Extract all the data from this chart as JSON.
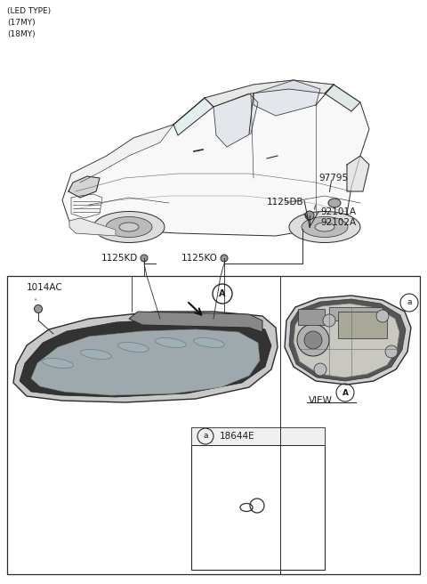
{
  "title_lines": [
    "(LED TYPE)",
    "(17MY)",
    "(18MY)"
  ],
  "bg_color": "#ffffff",
  "line_color": "#2a2a2a",
  "text_color": "#1a1a1a",
  "fs_label": 7.5,
  "fs_small": 6.5,
  "car_color": "#f0f0f0",
  "lamp_light_gray": "#d8d8d8",
  "lamp_dark": "#444444",
  "lamp_mid": "#888888"
}
